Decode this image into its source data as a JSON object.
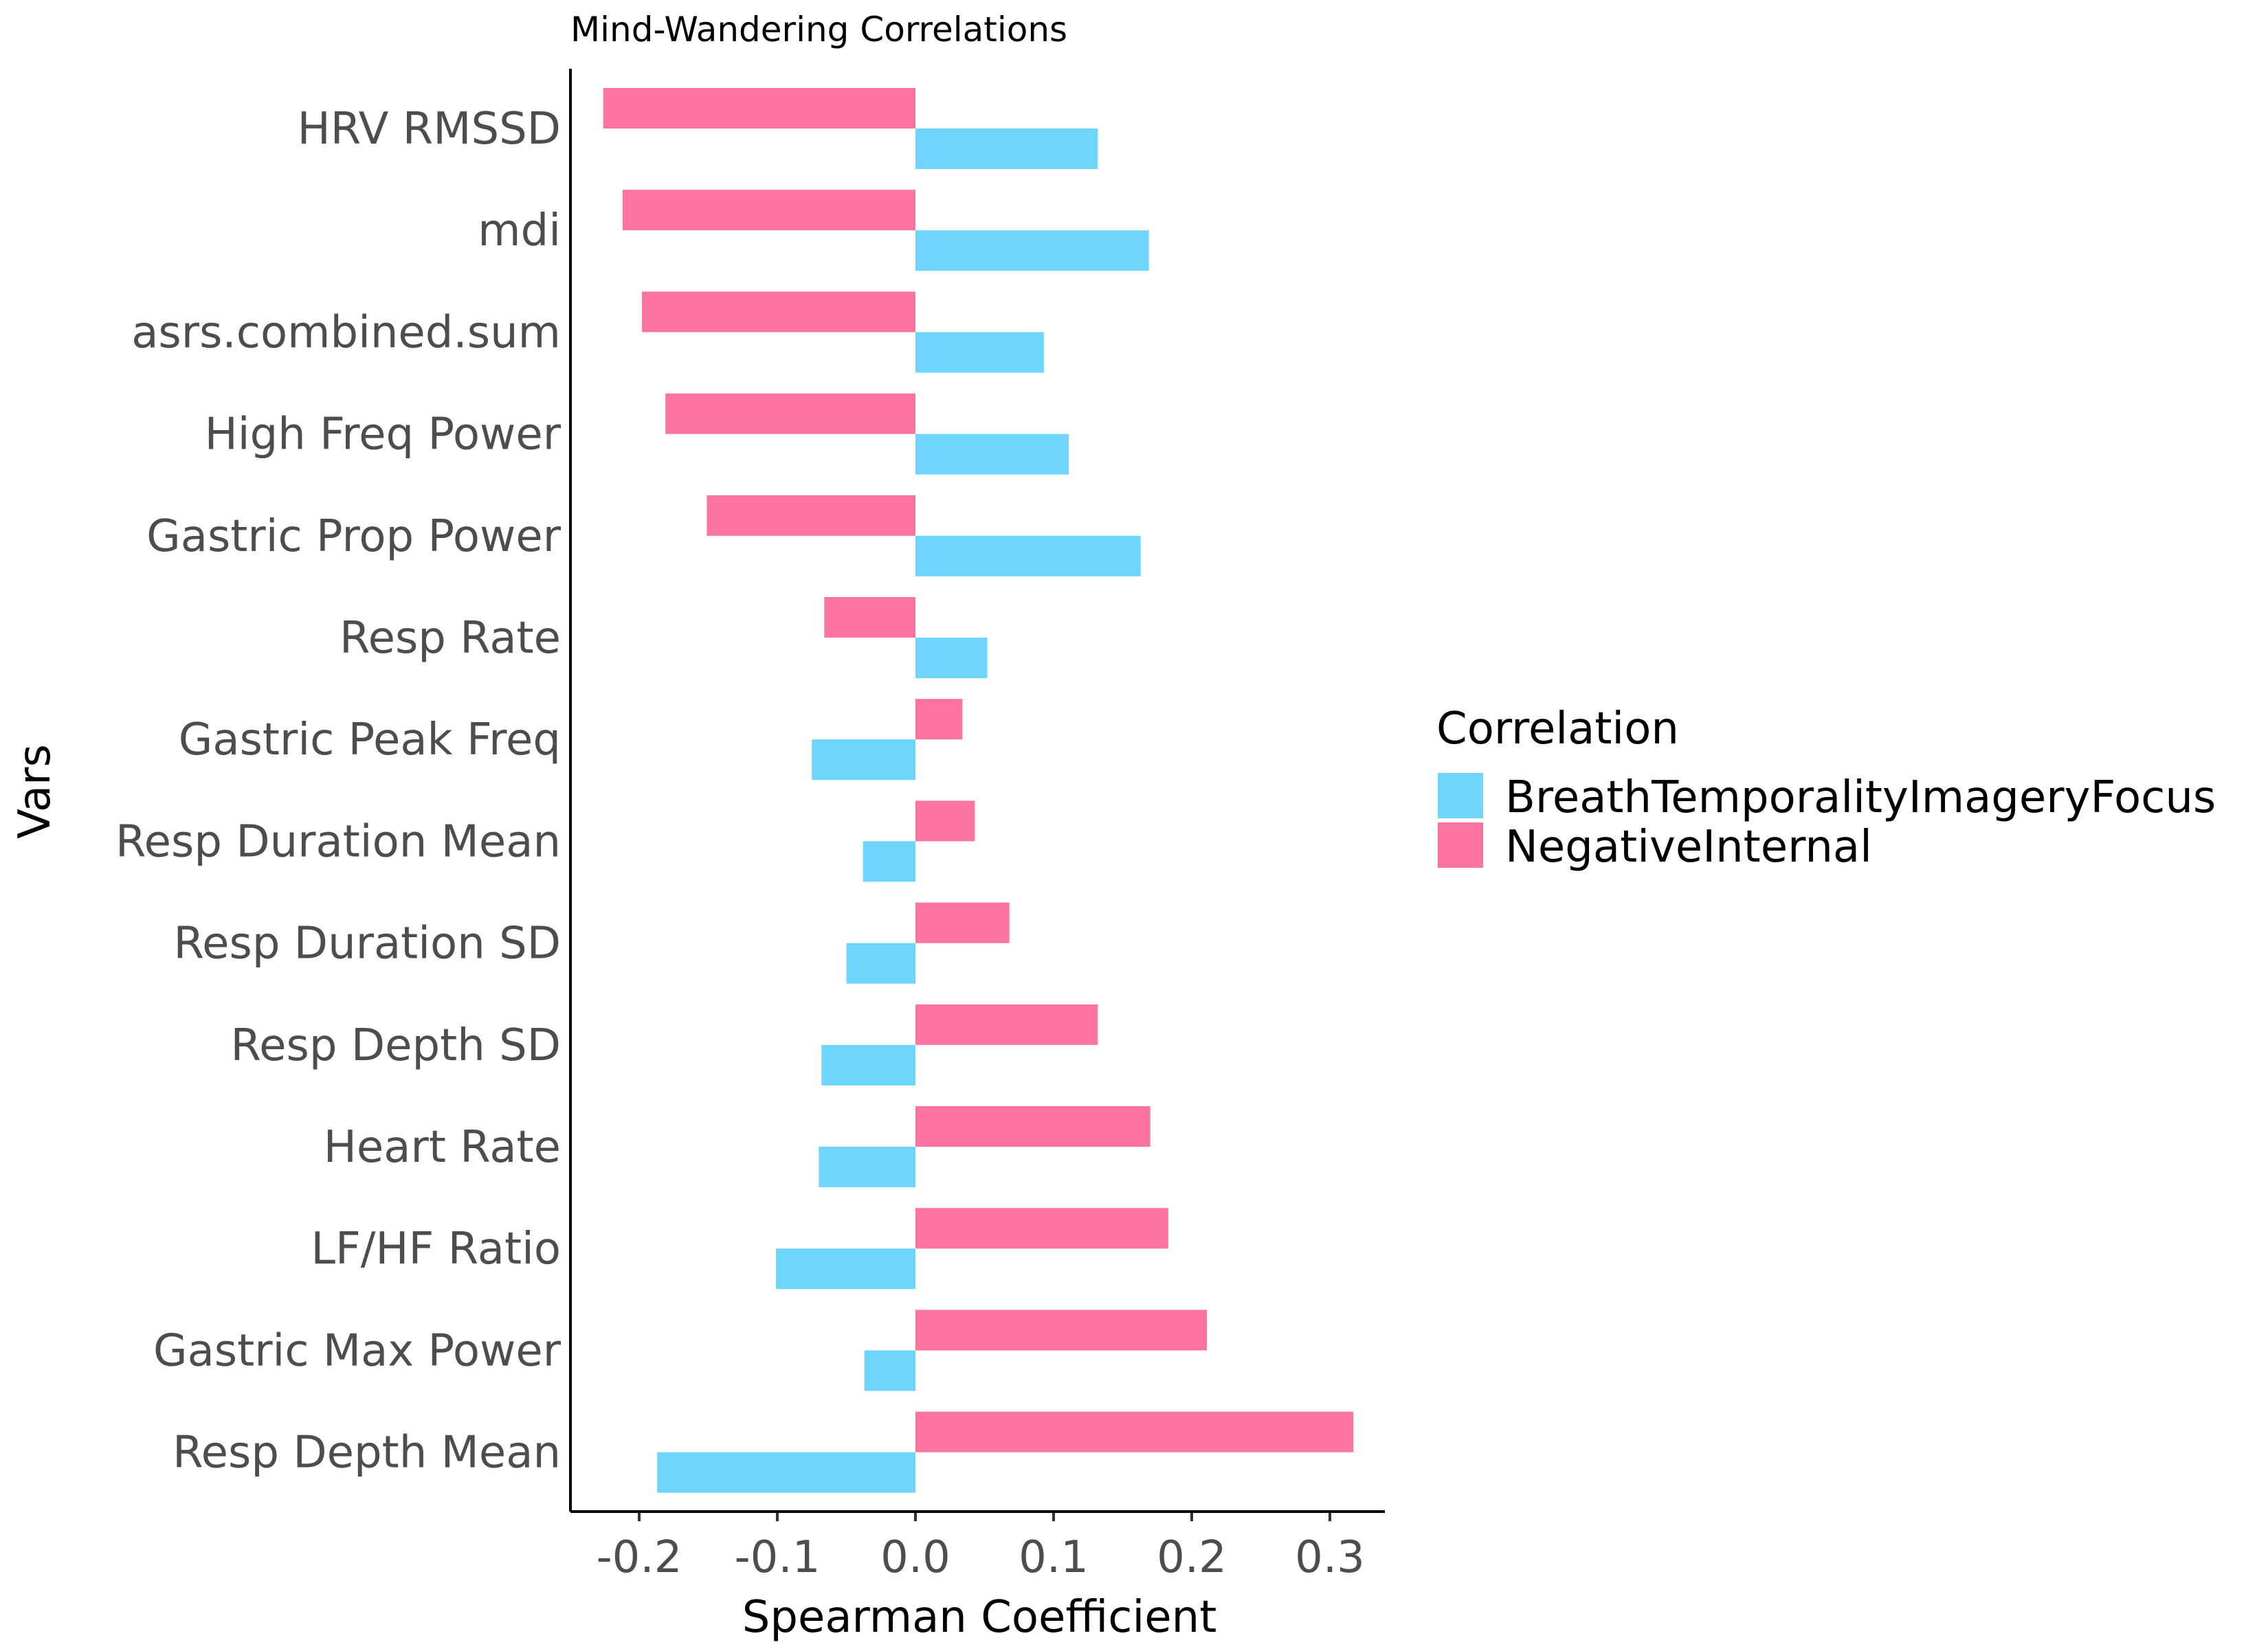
{
  "chart_data": {
    "type": "bar",
    "orientation": "horizontal",
    "title": "Mind-Wandering Correlations",
    "xlabel": "Spearman Coefficient",
    "ylabel": "Vars",
    "xlim": [
      -0.25,
      0.345
    ],
    "xticks": [
      -0.2,
      -0.1,
      0.0,
      0.1,
      0.2,
      0.3
    ],
    "xtick_labels": [
      "-0.2",
      "-0.1",
      "0.0",
      "0.1",
      "0.2",
      "0.3"
    ],
    "grid": false,
    "legend": {
      "title": "Correlation",
      "placement": "right"
    },
    "categories": [
      "HRV RMSSD",
      "mdi",
      "asrs.combined.sum",
      "High Freq Power",
      "Gastric Prop Power",
      "Resp Rate",
      "Gastric Peak Freq",
      "Resp Duration Mean",
      "Resp Duration SD",
      "Resp Depth SD",
      "Heart Rate",
      "LF/HF Ratio",
      "Gastric Max Power",
      "Resp Depth Mean"
    ],
    "series": [
      {
        "name": "BreathTemporalityImageryFocus",
        "color": "#6ed6fc",
        "values": [
          0.132,
          0.169,
          0.093,
          0.111,
          0.163,
          0.052,
          -0.075,
          -0.038,
          -0.05,
          -0.068,
          -0.07,
          -0.101,
          -0.037,
          -0.187
        ]
      },
      {
        "name": "NegativeInternal",
        "color": "#ff73a3",
        "values": [
          -0.226,
          -0.212,
          -0.198,
          -0.181,
          -0.151,
          -0.066,
          0.034,
          0.043,
          0.068,
          0.132,
          0.17,
          0.183,
          0.211,
          0.317
        ]
      }
    ]
  }
}
